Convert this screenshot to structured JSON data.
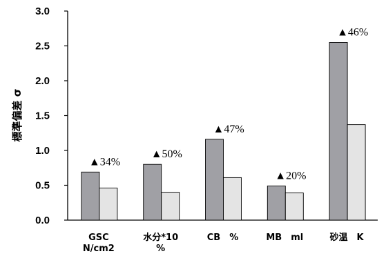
{
  "chart_data": {
    "type": "bar",
    "ylabel": "標準偏差 σ",
    "ylim": [
      0,
      3.0
    ],
    "yticks": [
      "0.0",
      "0.5",
      "1.0",
      "1.5",
      "2.0",
      "2.5",
      "3.0"
    ],
    "grid": false,
    "categories": [
      [
        "GSC",
        "N/cm2"
      ],
      [
        "水分*10",
        "%"
      ],
      [
        "CB　%"
      ],
      [
        "MB　ml"
      ],
      [
        "砂温　K"
      ]
    ],
    "series": [
      {
        "values": [
          0.69,
          0.8,
          1.16,
          0.49,
          2.55
        ],
        "color": "#a0a0a5"
      },
      {
        "values": [
          0.46,
          0.4,
          0.61,
          0.39,
          1.37
        ],
        "color": "#e4e4e4"
      }
    ],
    "annotations": [
      "▲34%",
      "▲50%",
      "▲47%",
      "▲20%",
      "▲46%"
    ]
  }
}
